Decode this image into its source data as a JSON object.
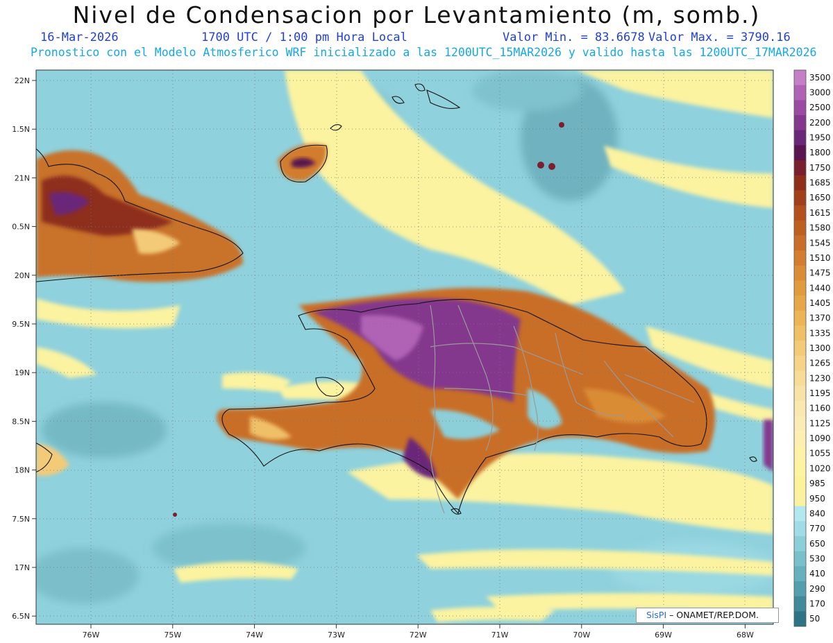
{
  "title": "Nivel de Condensacion por Levantamiento (m, somb.)",
  "date": "16-Mar-2026",
  "time": "1700 UTC / 1:00 pm Hora Local",
  "valor_min": "Valor Min. = 83.6678",
  "valor_max": "Valor Max. = 3790.16",
  "forecast_info": "Pronostico con el Modelo Atmosferico WRF inicializado a las 1200UTC_15MAR2026 y valido hasta las  1200UTC_17MAR2026",
  "credit": {
    "brand": "SisPI",
    "org": " – ONAMET/REP.DOM."
  },
  "lat_labels": [
    "22N",
    "1.5N",
    "21N",
    "0.5N",
    "20N",
    "9.5N",
    "19N",
    "8.5N",
    "18N",
    "7.5N",
    "17N",
    "6.5N"
  ],
  "lon_labels": [
    "76W",
    "75W",
    "74W",
    "73W",
    "72W",
    "71W",
    "70W",
    "69W",
    "68W"
  ],
  "colorbar": {
    "labels": [
      "3500",
      "3000",
      "2500",
      "2200",
      "1950",
      "1800",
      "1750",
      "1685",
      "1650",
      "1615",
      "1580",
      "1545",
      "1510",
      "1475",
      "1440",
      "1405",
      "1370",
      "1335",
      "1300",
      "1265",
      "1230",
      "1195",
      "1160",
      "1125",
      "1090",
      "1055",
      "1020",
      "985",
      "950",
      "840",
      "770",
      "650",
      "530",
      "410",
      "290",
      "170",
      "50"
    ],
    "colors": [
      "#c57fc6",
      "#b062b4",
      "#9a4aa2",
      "#83378d",
      "#6a2878",
      "#58154f",
      "#7a1f2e",
      "#8e2f1c",
      "#a3401c",
      "#b3501e",
      "#be5f22",
      "#c96e28",
      "#d27d2f",
      "#da8c36",
      "#e19a3e",
      "#e7a749",
      "#ecb457",
      "#f0c067",
      "#f3cb78",
      "#f5d489",
      "#f7dc98",
      "#f8e3a6",
      "#f9e8b0",
      "#faecb5",
      "#fbf0b2",
      "#fcf3a8",
      "#fcf4a0",
      "#fbf39a",
      "#faf2a0",
      "#b5e8ee",
      "#9fdce6",
      "#8ccfd9",
      "#79c0cb",
      "#67b0bd",
      "#549fae",
      "#42899b",
      "#2f7386"
    ]
  }
}
